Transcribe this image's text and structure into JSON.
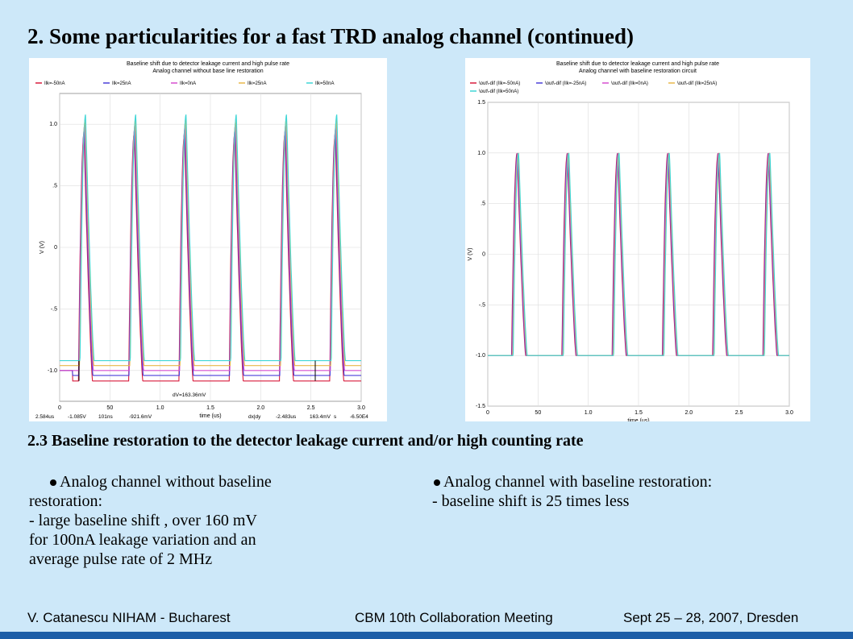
{
  "slide": {
    "title": "2. Some particularities for a fast TRD analog channel (continued)",
    "subtitle": "2.3 Baseline restoration to the detector leakage current and/or high counting rate",
    "left_bullet": [
      "Analog channel without baseline",
      "restoration:",
      "- large baseline shift , over 160 mV",
      "for 100nA leakage variation and an",
      "average pulse rate of 2 MHz"
    ],
    "right_bullet": [
      "Analog channel with baseline restoration:",
      "- baseline shift is 25 times less"
    ],
    "footer": {
      "author": "V. Catanescu   NIHAM  - Bucharest",
      "meeting": "CBM 10th Collaboration Meeting",
      "date": "Sept 25 – 28, 2007, Dresden"
    }
  },
  "chart_data": [
    {
      "type": "line",
      "title": "Baseline shift due to detector leakage current and high pulse rate",
      "subtitle": "Analog channel without base line restoration",
      "xlabel": "time (us)",
      "ylabel": "V (V)",
      "xlim": [
        0,
        3.0
      ],
      "ylim": [
        -1.25,
        1.25
      ],
      "xticks": [
        "0",
        "50",
        "1.0",
        "1.5",
        "2.0",
        "2.5",
        "3.0"
      ],
      "yticks": [
        "1.0",
        ".5",
        "0",
        "-.5",
        "-1.0"
      ],
      "grid": true,
      "legend_position": "top",
      "pulse_centers_us": [
        0.25,
        0.75,
        1.25,
        1.75,
        2.25,
        2.75
      ],
      "series": [
        {
          "name": "Ilk=-50nA",
          "color": "#d81b3c",
          "baseline": -1.085,
          "peak": 0.92
        },
        {
          "name": "Ilk=25nA",
          "color": "#4a3fd9",
          "baseline": -1.04,
          "peak": 0.96
        },
        {
          "name": "Ilk=0nA",
          "color": "#d64fd0",
          "baseline": -1.0,
          "peak": 1.0
        },
        {
          "name": "Ilk=25nA",
          "color": "#e8b84a",
          "baseline": -0.96,
          "peak": 1.04
        },
        {
          "name": "Ilk=50nA",
          "color": "#3fd6d6",
          "baseline": -0.92,
          "peak": 1.08
        }
      ],
      "annotation": "dV=163.36mV",
      "status": [
        "2.584us",
        "-1.085V",
        "101ns",
        "-921.6mV",
        "dx|dy",
        "-2.483us",
        "163.4mV",
        "s",
        "-6.50E4"
      ]
    },
    {
      "type": "line",
      "title": "Baseline shift due to detector leakage current and high pulse rate",
      "subtitle": "Analog channel with baseline restoration circuit",
      "xlabel": "time (us)",
      "ylabel": "V (V)",
      "xlim": [
        0,
        3.0
      ],
      "ylim": [
        -1.5,
        1.5
      ],
      "xticks": [
        "0",
        "50",
        "1.0",
        "1.5",
        "2.0",
        "2.5",
        "3.0"
      ],
      "yticks": [
        "1.5",
        "1.0",
        ".5",
        "0",
        "-.5",
        "-1.0",
        "-1.5"
      ],
      "grid": true,
      "legend_position": "top",
      "pulse_centers_us": [
        0.3,
        0.8,
        1.3,
        1.8,
        2.3,
        2.8
      ],
      "series": [
        {
          "name": "\\out\\-dif (Ilk=-50nA)",
          "color": "#d81b3c",
          "baseline": -1.0,
          "peak": 1.0
        },
        {
          "name": "\\out\\-dif (Ilk=-25nA)",
          "color": "#4a3fd9",
          "baseline": -1.0,
          "peak": 1.0
        },
        {
          "name": "\\out\\-dif (Ilk=0nA)",
          "color": "#d64fd0",
          "baseline": -1.0,
          "peak": 1.0
        },
        {
          "name": "\\out\\-dif (Ilk=25nA)",
          "color": "#e8b84a",
          "baseline": -1.0,
          "peak": 1.0
        },
        {
          "name": "\\out\\-dif (Ilk=50nA)",
          "color": "#3fd6d6",
          "baseline": -1.0,
          "peak": 1.0
        }
      ]
    }
  ]
}
